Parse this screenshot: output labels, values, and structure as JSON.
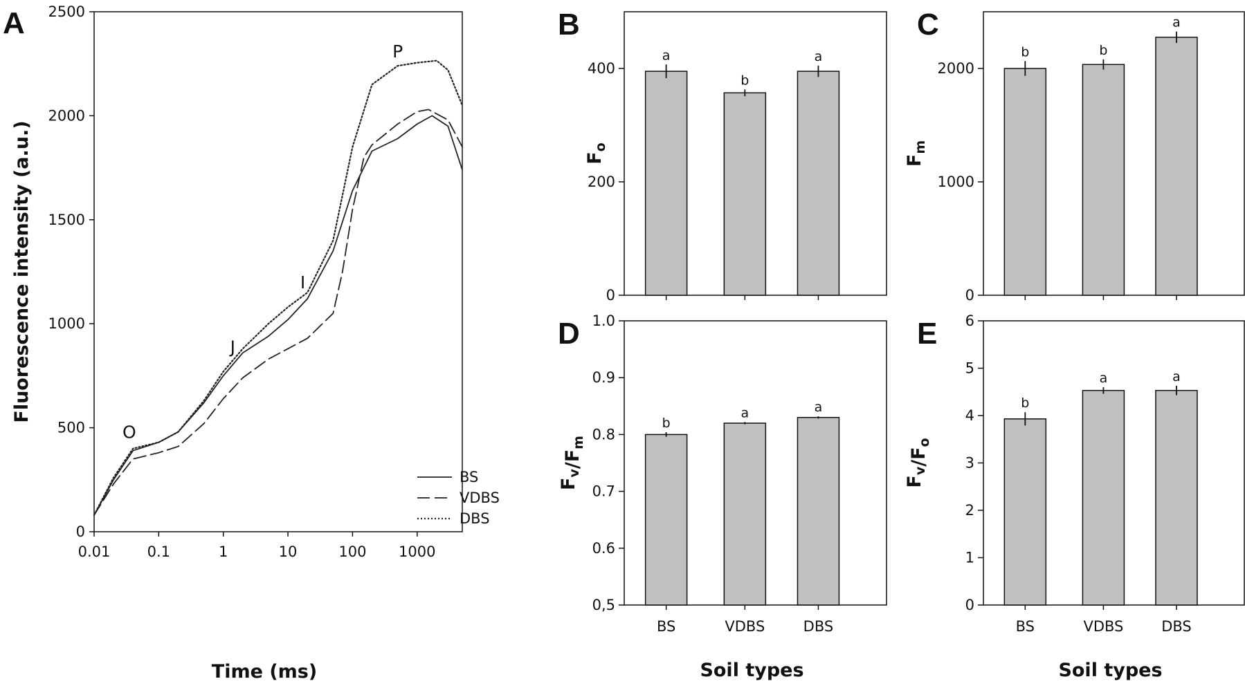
{
  "chart_data": [
    {
      "panel": "A",
      "type": "line",
      "xscale": "log",
      "xlabel": "Time (ms)",
      "ylabel": "Fluorescence intensity (a.u.)",
      "xlim": [
        0.01,
        5000
      ],
      "ylim": [
        0,
        2500
      ],
      "xticks": [
        0.01,
        0.1,
        1,
        10,
        100,
        1000
      ],
      "xtick_labels": [
        "0.01",
        "0.1",
        "1",
        "10",
        "100",
        "1000"
      ],
      "yticks": [
        0,
        500,
        1000,
        1500,
        2000,
        2500
      ],
      "ytick_labels": [
        "0",
        "500",
        "1000",
        "1500",
        "2000",
        "2500"
      ],
      "series": [
        {
          "name": "BS",
          "style": "solid",
          "x": [
            0.01,
            0.02,
            0.04,
            0.1,
            0.2,
            0.5,
            1,
            2,
            5,
            10,
            20,
            50,
            100,
            200,
            500,
            1000,
            1700,
            3000,
            5000
          ],
          "y": [
            80,
            250,
            390,
            430,
            480,
            620,
            750,
            860,
            940,
            1020,
            1120,
            1350,
            1640,
            1830,
            1890,
            1960,
            2000,
            1950,
            1740
          ]
        },
        {
          "name": "VDBS",
          "style": "dashed",
          "x": [
            0.01,
            0.02,
            0.04,
            0.1,
            0.2,
            0.5,
            1,
            2,
            5,
            10,
            20,
            50,
            70,
            100,
            150,
            200,
            500,
            1000,
            1500,
            3000,
            5000
          ],
          "y": [
            80,
            230,
            350,
            380,
            410,
            520,
            640,
            740,
            830,
            880,
            930,
            1050,
            1250,
            1550,
            1800,
            1860,
            1960,
            2020,
            2030,
            1980,
            1850
          ]
        },
        {
          "name": "DBS",
          "style": "dotted",
          "x": [
            0.01,
            0.02,
            0.04,
            0.1,
            0.2,
            0.5,
            1,
            2,
            5,
            10,
            20,
            50,
            100,
            200,
            500,
            1000,
            2000,
            3000,
            5000
          ],
          "y": [
            80,
            260,
            400,
            430,
            480,
            630,
            770,
            880,
            1000,
            1080,
            1150,
            1400,
            1850,
            2150,
            2240,
            2255,
            2265,
            2220,
            2050
          ]
        }
      ],
      "annotations": [
        {
          "text": "O",
          "x": 0.035,
          "y": 450
        },
        {
          "text": "J",
          "x": 1.4,
          "y": 860
        },
        {
          "text": "I",
          "x": 17,
          "y": 1170
        },
        {
          "text": "P",
          "x": 500,
          "y": 2280
        }
      ],
      "legend": [
        "BS",
        "VDBS",
        "DBS"
      ],
      "legend_position": "bottom-right"
    },
    {
      "panel": "B",
      "type": "bar",
      "ylabel": "Fo",
      "categories": [
        "BS",
        "VDBS",
        "DBS"
      ],
      "values": [
        395,
        357,
        395
      ],
      "errors": [
        12,
        6,
        10
      ],
      "letters": [
        "a",
        "b",
        "a"
      ],
      "ylim": [
        0,
        500
      ],
      "yticks": [
        0,
        200,
        400
      ],
      "ytick_labels": [
        "0",
        "200",
        "400"
      ]
    },
    {
      "panel": "C",
      "type": "bar",
      "ylabel": "Fm",
      "categories": [
        "BS",
        "VDBS",
        "DBS"
      ],
      "values": [
        2000,
        2035,
        2275
      ],
      "errors": [
        65,
        45,
        50
      ],
      "letters": [
        "b",
        "b",
        "a"
      ],
      "ylim": [
        0,
        2500
      ],
      "yticks": [
        0,
        1000,
        2000
      ],
      "ytick_labels": [
        "0",
        "1000",
        "2000"
      ]
    },
    {
      "panel": "D",
      "type": "bar",
      "ylabel": "Fv/Fm",
      "xlabel": "Soil types",
      "categories": [
        "BS",
        "VDBS",
        "DBS"
      ],
      "values": [
        0.8,
        0.82,
        0.83
      ],
      "errors": [
        0.004,
        0.002,
        0.002
      ],
      "letters": [
        "b",
        "a",
        "a"
      ],
      "ylim": [
        0.5,
        1.0
      ],
      "yticks": [
        0.5,
        0.6,
        0.7,
        0.8,
        0.9,
        1.0
      ],
      "ytick_labels": [
        "0,5",
        "0.6",
        "0.7",
        "0.8",
        "0.9",
        "1.0"
      ]
    },
    {
      "panel": "E",
      "type": "bar",
      "ylabel": "Fv/Fo",
      "xlabel": "Soil types",
      "categories": [
        "BS",
        "VDBS",
        "DBS"
      ],
      "values": [
        3.93,
        4.53,
        4.53
      ],
      "errors": [
        0.14,
        0.07,
        0.1
      ],
      "letters": [
        "b",
        "a",
        "a"
      ],
      "ylim": [
        0,
        6
      ],
      "yticks": [
        0,
        1,
        2,
        3,
        4,
        5,
        6
      ],
      "ytick_labels": [
        "0",
        "1",
        "2",
        "3",
        "4",
        "5",
        "6"
      ]
    }
  ],
  "colors": {
    "bar_fill": "#c0c0c0",
    "axis": "#111111",
    "line": "#222222"
  }
}
